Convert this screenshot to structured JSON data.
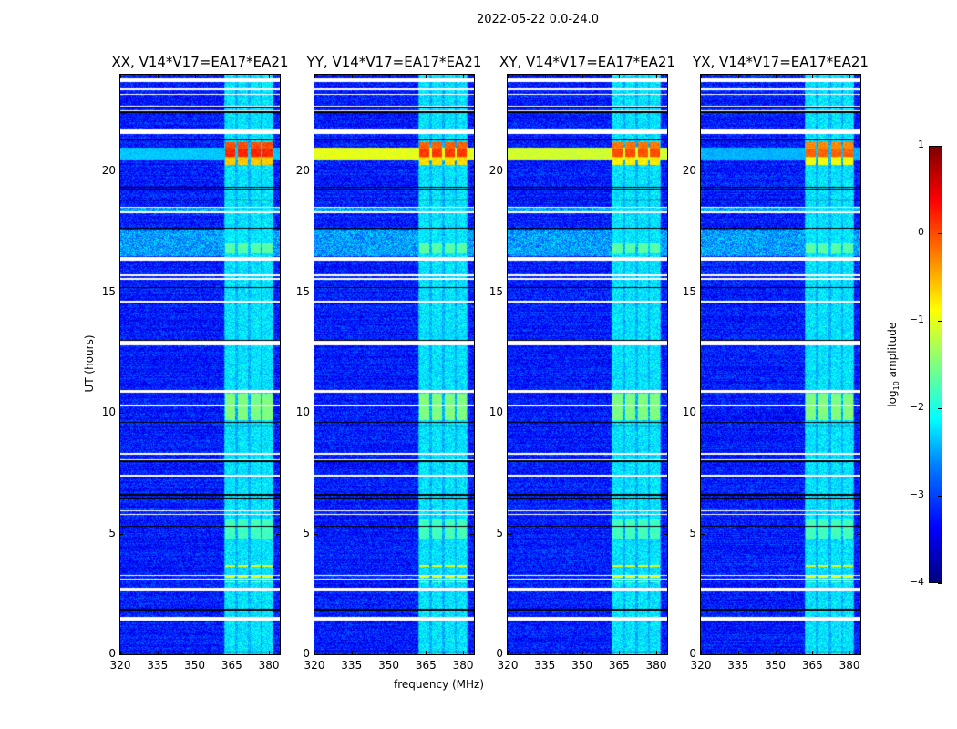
{
  "chart_data": {
    "type": "heatmap",
    "title": "2022-05-22 0.0-24.0",
    "xlabel": "frequency (MHz)",
    "ylabel": "UT (hours)",
    "xlim": [
      320,
      384.4
    ],
    "ylim": [
      0,
      24
    ],
    "xticks": [
      "320",
      "335",
      "350",
      "365",
      "380"
    ],
    "xtick_values": [
      320,
      335,
      350,
      365,
      380
    ],
    "yticks": [
      "0",
      "5",
      "10",
      "15",
      "20"
    ],
    "ytick_values": [
      0,
      5,
      10,
      15,
      20
    ],
    "colormap": "jet",
    "colorbar": {
      "label_parts": [
        "log",
        "10",
        " amplitude"
      ],
      "range": [
        -4,
        1
      ],
      "ticks": [
        "1",
        "0",
        "−1",
        "−2",
        "−3",
        "−4"
      ],
      "tick_values": [
        1,
        0,
        -1,
        -2,
        -3,
        -4
      ]
    },
    "panels": [
      {
        "title": "XX, V14*V17=EA17*EA21",
        "burst_level": 0.0,
        "broadband_20h_level": -2.4
      },
      {
        "title": "YY, V14*V17=EA17*EA21",
        "burst_level": -0.1,
        "broadband_20h_level": -1.0
      },
      {
        "title": "XY, V14*V17=EA17*EA21",
        "burst_level": -0.2,
        "broadband_20h_level": -1.1
      },
      {
        "title": "YX, V14*V17=EA17*EA21",
        "burst_level": -0.3,
        "broadband_20h_level": -2.5
      }
    ],
    "background_level": -3.25,
    "rfi_band_mhz": [
      362,
      382
    ],
    "rfi_band_level": -2.5,
    "rfi_channels_mhz": [
      [
        362.5,
        366.5
      ],
      [
        367.5,
        371.5
      ],
      [
        372.5,
        376.5
      ],
      [
        377.5,
        381.5
      ]
    ],
    "bursts": [
      {
        "hours": [
          20.25,
          21.2
        ],
        "level": "panel"
      },
      {
        "hours": [
          9.7,
          10.8
        ],
        "level": -1.5
      },
      {
        "hours": [
          4.8,
          5.6
        ],
        "level": -1.8
      },
      {
        "hours": [
          16.6,
          17.0
        ],
        "level": -1.7
      }
    ],
    "broadband_noisy_hours": [
      [
        16.5,
        17.6
      ],
      [
        18.3,
        18.5
      ]
    ],
    "flagged_hours": [
      [
        23.7,
        23.85
      ],
      [
        21.55,
        21.75
      ],
      [
        16.3,
        16.45
      ],
      [
        12.8,
        12.98
      ],
      [
        10.82,
        10.95
      ],
      [
        2.6,
        2.75
      ],
      [
        1.4,
        1.55
      ]
    ],
    "flagged_thin_hours": [
      23.4,
      23.2,
      22.7,
      22.5,
      18.5,
      18.3,
      15.7,
      15.55,
      14.6,
      10.3,
      8.3,
      8.05,
      7.4,
      5.95,
      5.8,
      3.25,
      3.1
    ],
    "dropout_hours": [
      22.65,
      22.45,
      21.3,
      19.33,
      19.25,
      18.8,
      17.65,
      15.2,
      13.0,
      9.6,
      9.45,
      8.0,
      6.6,
      6.45,
      5.3,
      1.85,
      0.1
    ],
    "yellow_lines_hours": [
      3.0,
      3.2,
      3.65
    ]
  }
}
